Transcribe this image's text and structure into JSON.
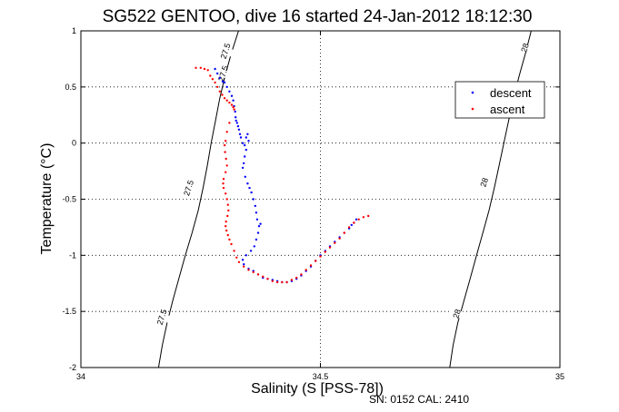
{
  "chart_data": {
    "type": "scatter",
    "title": "SG522 GENTOO, dive 16 started 24-Jan-2012 18:12:30",
    "xlabel": "Salinity (S [PSS-78])",
    "ylabel": "Temperature (°C)",
    "xlim": [
      34,
      35
    ],
    "ylim": [
      -2,
      1
    ],
    "xticks": [
      34,
      34.5,
      35
    ],
    "xtick_labels": [
      "34",
      "34.5",
      "35"
    ],
    "yticks": [
      -2,
      -1.5,
      -1,
      -0.5,
      0,
      0.5,
      1
    ],
    "ytick_labels": [
      "-2",
      "-1.5",
      "-1",
      "-0.5",
      "0",
      "0.5",
      "1"
    ],
    "grid": true,
    "legend_position": "top-right",
    "footer": "SN: 0152  CAL: 2410",
    "contours": [
      {
        "value": "27.5",
        "color": "#000000",
        "points": [
          [
            34.162,
            -2.0
          ],
          [
            34.17,
            -1.8
          ],
          [
            34.18,
            -1.6
          ],
          [
            34.192,
            -1.4
          ],
          [
            34.205,
            -1.2
          ],
          [
            34.218,
            -1.0
          ],
          [
            34.232,
            -0.8
          ],
          [
            34.245,
            -0.6
          ],
          [
            34.255,
            -0.4
          ],
          [
            34.264,
            -0.2
          ],
          [
            34.272,
            0.0
          ],
          [
            34.281,
            0.2
          ],
          [
            34.29,
            0.4
          ],
          [
            34.301,
            0.6
          ],
          [
            34.314,
            0.8
          ],
          [
            34.329,
            1.0
          ]
        ],
        "labels": [
          [
            34.169,
            -1.55
          ],
          [
            34.225,
            -0.4
          ],
          [
            34.297,
            0.62
          ],
          [
            34.302,
            0.82
          ]
        ]
      },
      {
        "value": "28",
        "color": "#000000",
        "points": [
          [
            34.77,
            -2.0
          ],
          [
            34.777,
            -1.8
          ],
          [
            34.787,
            -1.6
          ],
          [
            34.8,
            -1.4
          ],
          [
            34.813,
            -1.2
          ],
          [
            34.826,
            -1.0
          ],
          [
            34.839,
            -0.8
          ],
          [
            34.852,
            -0.6
          ],
          [
            34.863,
            -0.4
          ],
          [
            34.873,
            -0.2
          ],
          [
            34.883,
            0.0
          ],
          [
            34.893,
            0.2
          ],
          [
            34.903,
            0.4
          ],
          [
            34.915,
            0.6
          ],
          [
            34.928,
            0.8
          ],
          [
            34.94,
            1.0
          ]
        ],
        "labels": [
          [
            34.785,
            -1.52
          ],
          [
            34.842,
            -0.35
          ],
          [
            34.927,
            0.85
          ]
        ]
      }
    ],
    "series": [
      {
        "name": "descent",
        "color": "#0000ff",
        "points": [
          [
            34.28,
            0.66
          ],
          [
            34.285,
            0.62
          ],
          [
            34.29,
            0.58
          ],
          [
            34.296,
            0.55
          ],
          [
            34.3,
            0.54
          ],
          [
            34.305,
            0.5
          ],
          [
            34.31,
            0.46
          ],
          [
            34.315,
            0.42
          ],
          [
            34.318,
            0.38
          ],
          [
            34.32,
            0.33
          ],
          [
            34.322,
            0.28
          ],
          [
            34.323,
            0.23
          ],
          [
            34.324,
            0.2
          ],
          [
            34.326,
            0.18
          ],
          [
            34.328,
            0.15
          ],
          [
            34.33,
            0.12
          ],
          [
            34.332,
            0.08
          ],
          [
            34.334,
            0.05
          ],
          [
            34.338,
            0.0
          ],
          [
            34.342,
            -0.02
          ],
          [
            34.345,
            0.05
          ],
          [
            34.348,
            0.08
          ],
          [
            34.35,
            0.02
          ],
          [
            34.345,
            -0.06
          ],
          [
            34.342,
            -0.12
          ],
          [
            34.34,
            -0.18
          ],
          [
            34.338,
            -0.22
          ],
          [
            34.343,
            -0.3
          ],
          [
            34.348,
            -0.36
          ],
          [
            34.352,
            -0.4
          ],
          [
            34.356,
            -0.44
          ],
          [
            34.36,
            -0.5
          ],
          [
            34.364,
            -0.56
          ],
          [
            34.366,
            -0.62
          ],
          [
            34.368,
            -0.68
          ],
          [
            34.372,
            -0.74
          ],
          [
            34.375,
            -0.72
          ],
          [
            34.37,
            -0.8
          ],
          [
            34.366,
            -0.86
          ],
          [
            34.362,
            -0.92
          ],
          [
            34.355,
            -0.96
          ],
          [
            34.345,
            -1.0
          ],
          [
            34.338,
            -1.04
          ],
          [
            34.34,
            -1.08
          ],
          [
            34.35,
            -1.12
          ],
          [
            34.36,
            -1.14
          ],
          [
            34.37,
            -1.17
          ],
          [
            34.38,
            -1.2
          ],
          [
            34.39,
            -1.21
          ],
          [
            34.4,
            -1.22
          ],
          [
            34.41,
            -1.23
          ],
          [
            34.42,
            -1.24
          ],
          [
            34.43,
            -1.24
          ],
          [
            34.44,
            -1.23
          ],
          [
            34.45,
            -1.21
          ],
          [
            34.46,
            -1.18
          ],
          [
            34.47,
            -1.14
          ],
          [
            34.48,
            -1.1
          ],
          [
            34.49,
            -1.05
          ],
          [
            34.5,
            -1.0
          ],
          [
            34.51,
            -0.96
          ],
          [
            34.52,
            -0.92
          ],
          [
            34.53,
            -0.88
          ],
          [
            34.54,
            -0.84
          ],
          [
            34.55,
            -0.8
          ],
          [
            34.56,
            -0.76
          ],
          [
            34.565,
            -0.73
          ],
          [
            34.57,
            -0.71
          ],
          [
            34.575,
            -0.68
          ]
        ]
      },
      {
        "name": "ascent",
        "color": "#ff0000",
        "points": [
          [
            34.24,
            0.67
          ],
          [
            34.25,
            0.67
          ],
          [
            34.258,
            0.66
          ],
          [
            34.265,
            0.65
          ],
          [
            34.27,
            0.6
          ],
          [
            34.275,
            0.57
          ],
          [
            34.28,
            0.54
          ],
          [
            34.285,
            0.5
          ],
          [
            34.29,
            0.46
          ],
          [
            34.295,
            0.43
          ],
          [
            34.3,
            0.4
          ],
          [
            34.305,
            0.38
          ],
          [
            34.31,
            0.36
          ],
          [
            34.315,
            0.34
          ],
          [
            34.318,
            0.32
          ],
          [
            34.32,
            0.3
          ],
          [
            34.31,
            0.18
          ],
          [
            34.305,
            0.1
          ],
          [
            34.302,
            0.02
          ],
          [
            34.3,
            -0.02
          ],
          [
            34.301,
            -0.08
          ],
          [
            34.303,
            -0.14
          ],
          [
            34.305,
            -0.2
          ],
          [
            34.302,
            -0.26
          ],
          [
            34.298,
            -0.32
          ],
          [
            34.297,
            -0.36
          ],
          [
            34.298,
            -0.4
          ],
          [
            34.302,
            -0.45
          ],
          [
            34.305,
            -0.5
          ],
          [
            34.307,
            -0.55
          ],
          [
            34.308,
            -0.6
          ],
          [
            34.306,
            -0.65
          ],
          [
            34.303,
            -0.7
          ],
          [
            34.302,
            -0.74
          ],
          [
            34.304,
            -0.78
          ],
          [
            34.307,
            -0.82
          ],
          [
            34.31,
            -0.86
          ],
          [
            34.314,
            -0.9
          ],
          [
            34.32,
            -0.96
          ],
          [
            34.325,
            -1.02
          ],
          [
            34.33,
            -1.06
          ],
          [
            34.34,
            -1.1
          ],
          [
            34.35,
            -1.13
          ],
          [
            34.36,
            -1.15
          ],
          [
            34.37,
            -1.17
          ],
          [
            34.38,
            -1.19
          ],
          [
            34.39,
            -1.21
          ],
          [
            34.4,
            -1.23
          ],
          [
            34.41,
            -1.24
          ],
          [
            34.42,
            -1.24
          ],
          [
            34.43,
            -1.24
          ],
          [
            34.44,
            -1.22
          ],
          [
            34.45,
            -1.2
          ],
          [
            34.46,
            -1.17
          ],
          [
            34.47,
            -1.13
          ],
          [
            34.48,
            -1.09
          ],
          [
            34.49,
            -1.05
          ],
          [
            34.5,
            -1.01
          ],
          [
            34.51,
            -0.97
          ],
          [
            34.52,
            -0.93
          ],
          [
            34.53,
            -0.89
          ],
          [
            34.54,
            -0.85
          ],
          [
            34.55,
            -0.8
          ],
          [
            34.56,
            -0.75
          ],
          [
            34.57,
            -0.71
          ],
          [
            34.58,
            -0.68
          ],
          [
            34.59,
            -0.66
          ],
          [
            34.6,
            -0.65
          ]
        ]
      }
    ]
  }
}
